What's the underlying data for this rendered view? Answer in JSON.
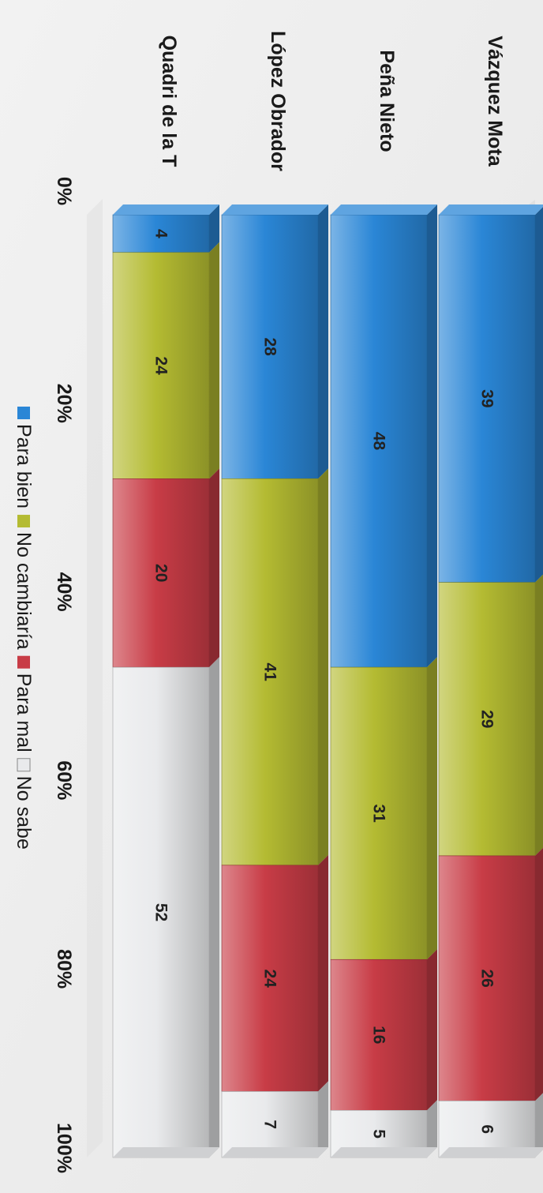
{
  "chart_data": {
    "type": "bar",
    "stacked": true,
    "orientation": "horizontal",
    "rotation_degrees": 90,
    "categories": [
      "Vázquez Mota",
      "Peña Nieto",
      "López Obrador",
      "Quadri de la T"
    ],
    "series": [
      {
        "name": "Para bien",
        "color": "#2a86d6",
        "values": [
          39,
          48,
          28,
          4
        ]
      },
      {
        "name": "No cambiaría",
        "color": "#b4bb32",
        "values": [
          29,
          31,
          41,
          24
        ]
      },
      {
        "name": "Para mal",
        "color": "#c83c46",
        "values": [
          26,
          16,
          24,
          20
        ]
      },
      {
        "name": "No sabe",
        "color": "#e9eaec",
        "values": [
          6,
          5,
          7,
          52
        ]
      }
    ],
    "xaxis": {
      "ticks": [
        "0%",
        "20%",
        "40%",
        "60%",
        "80%",
        "100%"
      ],
      "range": [
        0,
        100
      ]
    },
    "legend": {
      "position": "bottom"
    },
    "grid": false,
    "title": "",
    "xlabel": "",
    "ylabel": ""
  }
}
